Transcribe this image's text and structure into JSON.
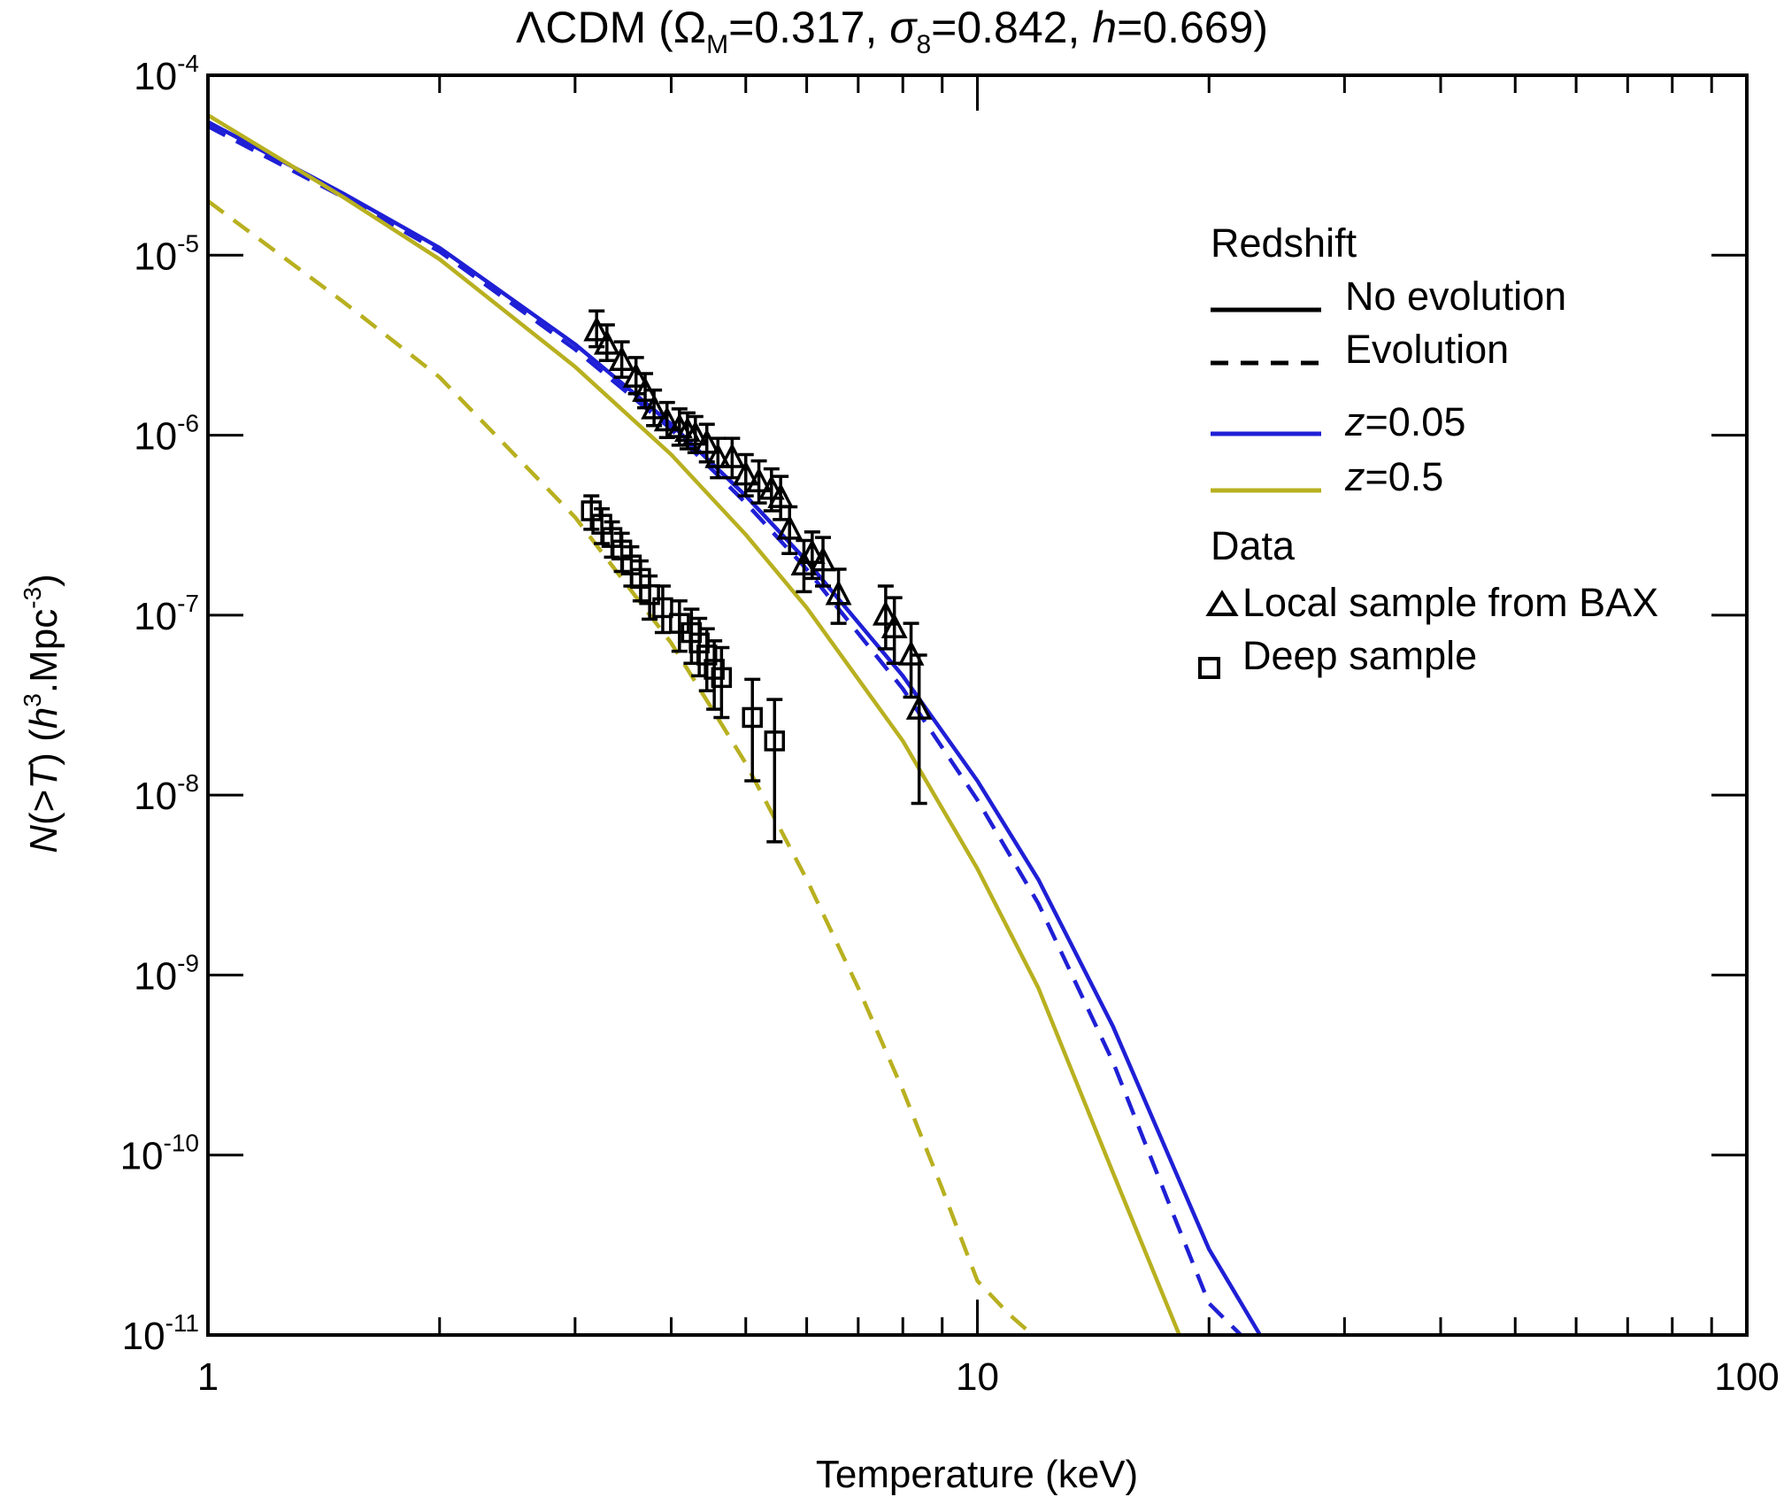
{
  "chart_data": {
    "type": "line",
    "title": {
      "model": "ΛCDM",
      "params": [
        {
          "symbol": "Ω",
          "subscript": "M",
          "value": "0.317"
        },
        {
          "symbol": "σ",
          "subscript": "8",
          "value": "0.842"
        },
        {
          "symbol": "h",
          "subscript": "",
          "value": "0.669"
        }
      ]
    },
    "xlabel": "Temperature (keV)",
    "ylabel": {
      "text": "N(>T) (h",
      "sup1": "3",
      "mid": ".Mpc",
      "sup2": "-3",
      "end": ")"
    },
    "x_scale": "log",
    "y_scale": "log",
    "xlim": [
      1,
      100
    ],
    "ylim": [
      1e-11,
      0.0001
    ],
    "x_tick_labels": [
      "1",
      "10",
      "100"
    ],
    "y_tick_labels": [
      {
        "base": "10",
        "exp": "-4"
      },
      {
        "base": "10",
        "exp": "-5"
      },
      {
        "base": "10",
        "exp": "-6"
      },
      {
        "base": "10",
        "exp": "-7"
      },
      {
        "base": "10",
        "exp": "-8"
      },
      {
        "base": "10",
        "exp": "-9"
      },
      {
        "base": "10",
        "exp": "-10"
      },
      {
        "base": "10",
        "exp": "-11"
      }
    ],
    "legend": {
      "position": "top-right",
      "redshift_heading": "Redshift",
      "style_entries": [
        {
          "label": "No evolution",
          "style": "solid"
        },
        {
          "label": "Evolution",
          "style": "dashed"
        }
      ],
      "color_entries": [
        {
          "prefix": "z",
          "label": "=0.05",
          "color": "#1f1fd6"
        },
        {
          "prefix": "z",
          "label": "=0.5",
          "color": "#b8b020"
        }
      ],
      "data_heading": "Data",
      "data_entries": [
        {
          "label": "Local sample from BAX",
          "marker": "triangle"
        },
        {
          "label": "Deep sample",
          "marker": "square"
        }
      ]
    },
    "series": [
      {
        "redshift": "0.05",
        "evolution": false,
        "color": "#1f1fd6",
        "style": "solid",
        "x": [
          1,
          1.5,
          2,
          3,
          4,
          5,
          6,
          8,
          10,
          12,
          15,
          18,
          20,
          23.3
        ],
        "y": [
          5.5e-05,
          2.2e-05,
          1.1e-05,
          3.2e-06,
          1.15e-06,
          4.6e-07,
          2e-07,
          4.6e-08,
          1.2e-08,
          3.4e-09,
          5.2e-10,
          8.5e-11,
          3e-11,
          1e-11
        ]
      },
      {
        "redshift": "0.05",
        "evolution": true,
        "color": "#1f1fd6",
        "style": "dashed",
        "x": [
          1,
          1.5,
          2,
          3,
          4,
          5,
          6,
          8,
          10,
          12,
          15,
          18,
          20,
          22
        ],
        "y": [
          5.2e-05,
          2.1e-05,
          1.05e-05,
          3e-06,
          1.08e-06,
          4.2e-07,
          1.8e-07,
          3.9e-08,
          9.4e-09,
          2.5e-09,
          3.3e-10,
          4.6e-11,
          1.5e-11,
          1e-11
        ]
      },
      {
        "redshift": "0.5",
        "evolution": false,
        "color": "#b8b020",
        "style": "solid",
        "x": [
          1,
          1.5,
          2,
          3,
          4,
          5,
          6,
          8,
          10,
          12,
          15,
          18.3
        ],
        "y": [
          6e-05,
          2.1e-05,
          9.5e-06,
          2.4e-06,
          7.8e-07,
          2.8e-07,
          1.1e-07,
          2e-08,
          3.9e-09,
          8.5e-10,
          8e-11,
          1e-11
        ]
      },
      {
        "redshift": "0.5",
        "evolution": true,
        "color": "#b8b020",
        "style": "dashed",
        "x": [
          1,
          1.5,
          2,
          3,
          4,
          5,
          6,
          7,
          8,
          9,
          10,
          11,
          11.8
        ],
        "y": [
          2e-05,
          5.5e-06,
          2.1e-06,
          3.5e-07,
          7e-08,
          1.5e-08,
          3.4e-09,
          8.5e-10,
          2.3e-10,
          6.5e-11,
          2e-11,
          1.3e-11,
          1e-11
        ]
      }
    ],
    "data_points": [
      {
        "name": "Local sample from BAX",
        "marker": "triangle",
        "x": [
          3.2,
          3.3,
          3.45,
          3.6,
          3.7,
          3.8,
          3.95,
          4.1,
          4.2,
          4.3,
          4.45,
          4.6,
          4.8,
          5.0,
          5.2,
          5.4,
          5.55,
          5.7,
          5.95,
          6.1,
          6.3,
          6.6,
          7.6,
          7.8,
          8.2,
          8.4
        ],
        "y": [
          3.8e-06,
          3.2e-06,
          2.6e-06,
          2.1e-06,
          1.75e-06,
          1.4e-06,
          1.2e-06,
          1.1e-06,
          1.05e-06,
          1e-06,
          9e-07,
          7.5e-07,
          7.5e-07,
          6e-07,
          5.5e-07,
          5e-07,
          4.5e-07,
          3e-07,
          1.9e-07,
          2.2e-07,
          2e-07,
          1.3e-07,
          1e-07,
          8.5e-08,
          6e-08,
          3e-08
        ],
        "err_lo": [
          3.1e-06,
          2.6e-06,
          2.1e-06,
          1.7e-06,
          1.42e-06,
          1.13e-06,
          9.7e-07,
          8.8e-07,
          8.4e-07,
          8e-07,
          7.1e-07,
          5.8e-07,
          5.8e-07,
          4.6e-07,
          4.2e-07,
          3.8e-07,
          3.4e-07,
          2.2e-07,
          1.35e-07,
          1.6e-07,
          1.45e-07,
          9e-08,
          6.5e-08,
          5.4e-08,
          3.5e-08,
          9e-09
        ],
        "err_hi": [
          4.9e-06,
          4.1e-06,
          3.3e-06,
          2.7e-06,
          2.2e-06,
          1.78e-06,
          1.52e-06,
          1.4e-06,
          1.33e-06,
          1.27e-06,
          1.15e-06,
          9.6e-07,
          9.6e-07,
          7.8e-07,
          7.2e-07,
          6.5e-07,
          5.9e-07,
          4e-07,
          2.6e-07,
          2.9e-07,
          2.7e-07,
          1.8e-07,
          1.45e-07,
          1.25e-07,
          9e-08,
          6e-08
        ]
      },
      {
        "name": "Deep sample",
        "marker": "square",
        "x": [
          3.15,
          3.25,
          3.35,
          3.45,
          3.55,
          3.65,
          3.75,
          3.9,
          4.1,
          4.25,
          4.35,
          4.45,
          4.55,
          4.65,
          5.1,
          5.45
        ],
        "y": [
          3.8e-07,
          3.2e-07,
          2.7e-07,
          2.3e-07,
          1.9e-07,
          1.6e-07,
          1.3e-07,
          1.1e-07,
          9e-08,
          8e-08,
          7e-08,
          6e-08,
          5e-08,
          4.5e-08,
          2.7e-08,
          2e-08
        ],
        "err_lo": [
          3e-07,
          2.5e-07,
          2.1e-07,
          1.75e-07,
          1.45e-07,
          1.2e-07,
          9.5e-08,
          8e-08,
          6.3e-08,
          5.4e-08,
          4.6e-08,
          3.8e-08,
          3e-08,
          2.7e-08,
          1.2e-08,
          5.5e-09
        ],
        "err_hi": [
          4.6e-07,
          3.9e-07,
          3.3e-07,
          2.85e-07,
          2.4e-07,
          2e-07,
          1.65e-07,
          1.45e-07,
          1.2e-07,
          1.08e-07,
          9.6e-08,
          8.4e-08,
          7.2e-08,
          6.6e-08,
          4.4e-08,
          3.4e-08
        ]
      }
    ]
  }
}
